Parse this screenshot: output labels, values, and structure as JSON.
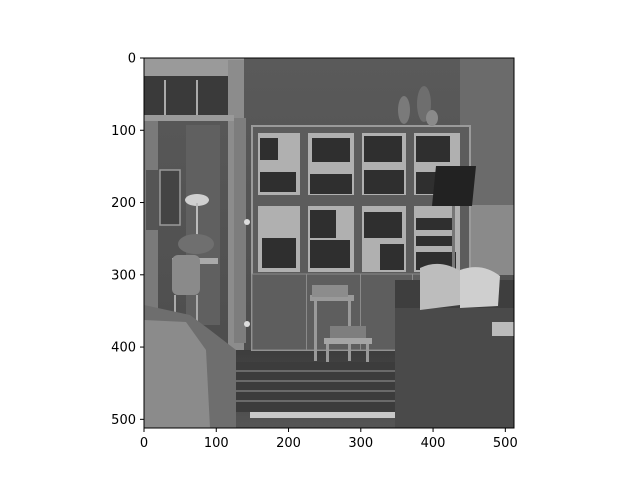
{
  "figure": {
    "image_subject": "grayscale living room with bookshelf cabinet, sofa, stools and door",
    "colors": {
      "axes_frame": "#000000",
      "background": "#ffffff"
    }
  },
  "chart_data": {
    "type": "image",
    "title": "",
    "xlabel": "",
    "ylabel": "",
    "xlim": [
      0,
      512
    ],
    "ylim": [
      512,
      0
    ],
    "x_ticks": [
      0,
      100,
      200,
      300,
      400,
      500
    ],
    "y_ticks": [
      0,
      100,
      200,
      300,
      400,
      500
    ],
    "grid": false,
    "legend": "none"
  }
}
